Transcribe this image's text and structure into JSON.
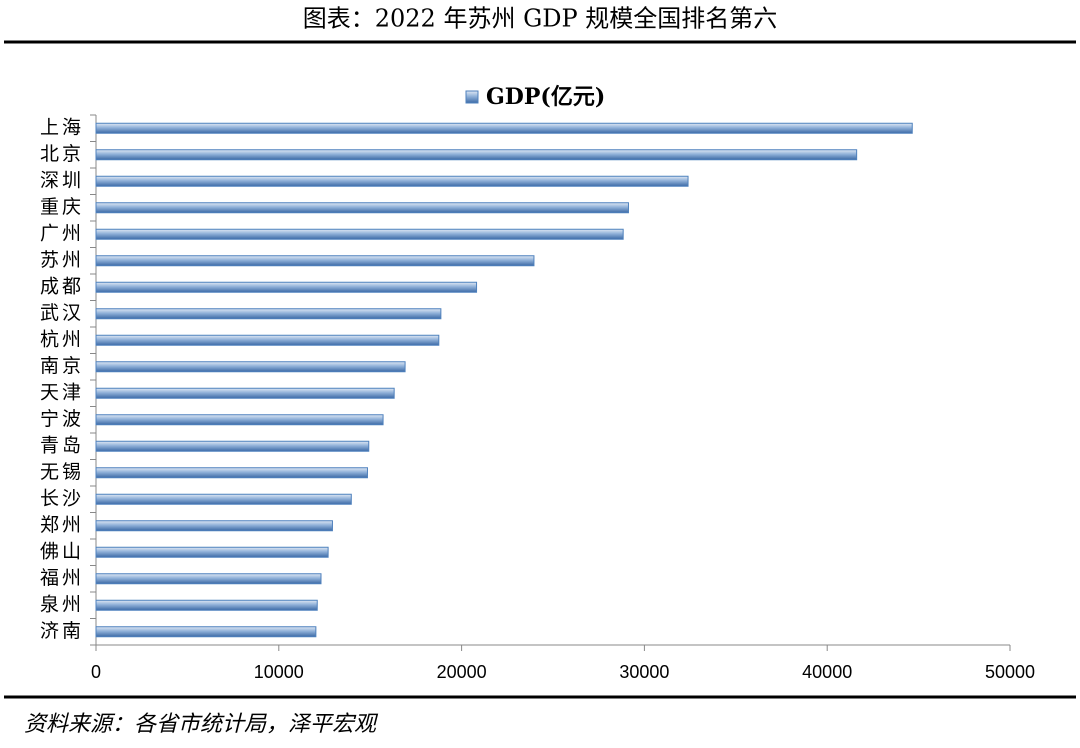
{
  "chart_data": {
    "type": "hbar",
    "title": "图表：2022 年苏州 GDP 规模全国排名第六",
    "source": "资料来源：各省市统计局，泽平宏观",
    "categories": [
      "上海",
      "北京",
      "深圳",
      "重庆",
      "广州",
      "苏州",
      "成都",
      "武汉",
      "杭州",
      "南京",
      "天津",
      "宁波",
      "青岛",
      "无锡",
      "长沙",
      "郑州",
      "佛山",
      "福州",
      "泉州",
      "济南"
    ],
    "series": [
      {
        "name": "GDP(亿元)",
        "color": "#4f81bd",
        "values": [
          44653,
          41611,
          32388,
          29129,
          28839,
          23958,
          20818,
          18866,
          18753,
          16908,
          16311,
          15704,
          14921,
          14851,
          13966,
          12935,
          12698,
          12308,
          12103,
          12028
        ]
      }
    ],
    "xlim": [
      0,
      50000
    ],
    "xticks": [
      0,
      10000,
      20000,
      30000,
      40000,
      50000
    ],
    "legend": "top"
  }
}
